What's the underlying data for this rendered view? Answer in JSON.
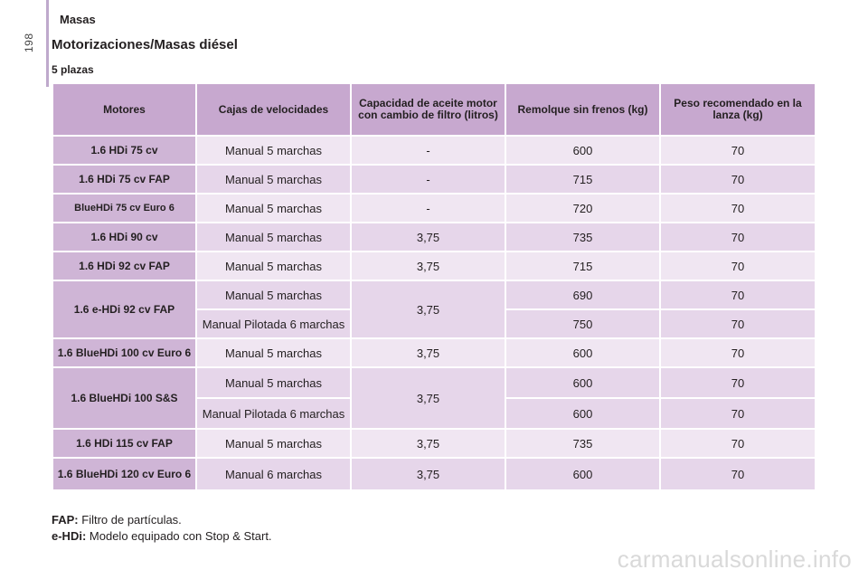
{
  "header": {
    "section": "Masas",
    "page_number": "198",
    "title": "Motorizaciones/Masas diésel",
    "subtitle": "5 plazas"
  },
  "table": {
    "columns": [
      "Motores",
      "Cajas de velocidades",
      "Capacidad de aceite motor con cambio de filtro (litros)",
      "Remolque sin frenos (kg)",
      "Peso recomendado en la lanza (kg)"
    ],
    "rows": [
      {
        "engine": "1.6 HDi 75 cv",
        "gearbox": "Manual 5 marchas",
        "oil": "-",
        "trailer": "600",
        "nose": "70"
      },
      {
        "engine": "1.6 HDi 75 cv FAP",
        "gearbox": "Manual 5 marchas",
        "oil": "-",
        "trailer": "715",
        "nose": "70"
      },
      {
        "engine": "BlueHDi 75 cv Euro 6",
        "gearbox": "Manual 5 marchas",
        "oil": "-",
        "trailer": "720",
        "nose": "70"
      },
      {
        "engine": "1.6 HDi 90 cv",
        "gearbox": "Manual 5 marchas",
        "oil": "3,75",
        "trailer": "735",
        "nose": "70"
      },
      {
        "engine": "1.6 HDi 92 cv FAP",
        "gearbox": "Manual 5 marchas",
        "oil": "3,75",
        "trailer": "715",
        "nose": "70"
      },
      {
        "engine": "1.6 e-HDi 92 cv FAP",
        "gearbox": "Manual 5 marchas",
        "oil": "3,75",
        "trailer": "690",
        "nose": "70",
        "gearbox2": "Manual Pilotada 6 marchas",
        "trailer2": "750",
        "nose2": "70"
      },
      {
        "engine": "1.6 BlueHDi 100 cv Euro 6",
        "gearbox": "Manual 5 marchas",
        "oil": "3,75",
        "trailer": "600",
        "nose": "70"
      },
      {
        "engine": "1.6 BlueHDi 100 S&S",
        "gearbox": "Manual 5 marchas",
        "oil": "3,75",
        "trailer": "600",
        "nose": "70",
        "gearbox2": "Manual Pilotada 6 marchas",
        "trailer2": "600",
        "nose2": "70"
      },
      {
        "engine": "1.6 HDi 115 cv FAP",
        "gearbox": "Manual 5 marchas",
        "oil": "3,75",
        "trailer": "735",
        "nose": "70"
      },
      {
        "engine": "1.6 BlueHDi 120 cv Euro 6",
        "gearbox": "Manual 6 marchas",
        "oil": "3,75",
        "trailer": "600",
        "nose": "70"
      }
    ]
  },
  "notes": [
    {
      "term": "FAP:",
      "text": "Filtro de partículas."
    },
    {
      "term": "e-HDi:",
      "text": "Modelo equipado con Stop & Start."
    }
  ],
  "watermark": "carmanualsonline.info",
  "colors": {
    "header_bg": "#c7a8cf",
    "engine_bg": "#cfb5d6",
    "row_light": "#f0e6f2",
    "row_dark": "#e6d6ea"
  }
}
